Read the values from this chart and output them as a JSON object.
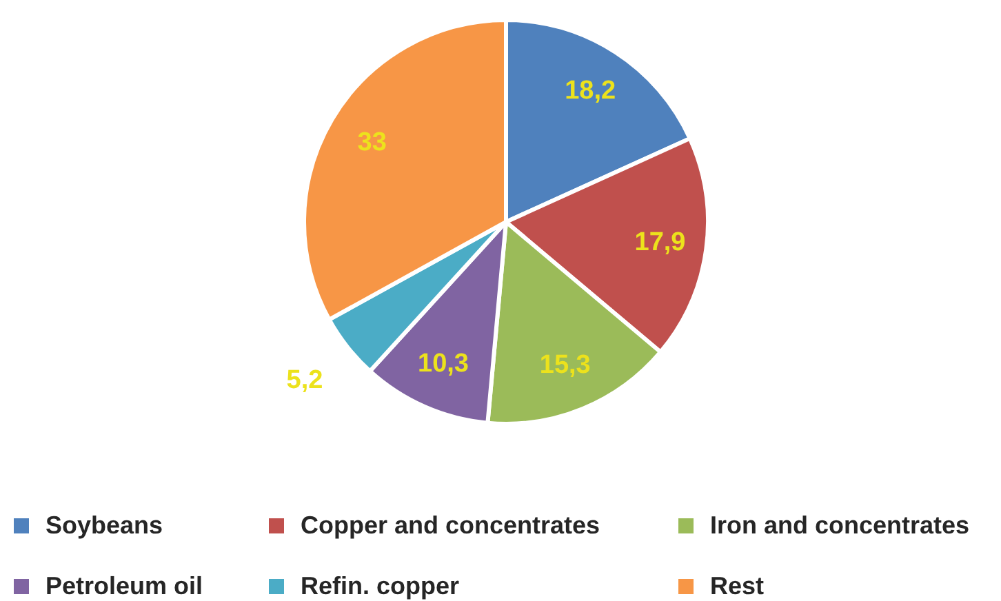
{
  "chart_data": {
    "type": "pie",
    "categories": [
      "Soybeans",
      "Copper and concentrates",
      "Iron and concentrates",
      "Petroleum oil",
      "Refin. copper",
      "Rest"
    ],
    "values": [
      18.2,
      17.9,
      15.3,
      10.3,
      5.2,
      33
    ],
    "colors": [
      "#4f81bd",
      "#c0504d",
      "#9bbb59",
      "#8064a2",
      "#4bacc6",
      "#f79646"
    ],
    "value_labels": [
      "18,2",
      "17,9",
      "15,3",
      "10,3",
      "5,2",
      "33"
    ],
    "legend": "bottom"
  }
}
